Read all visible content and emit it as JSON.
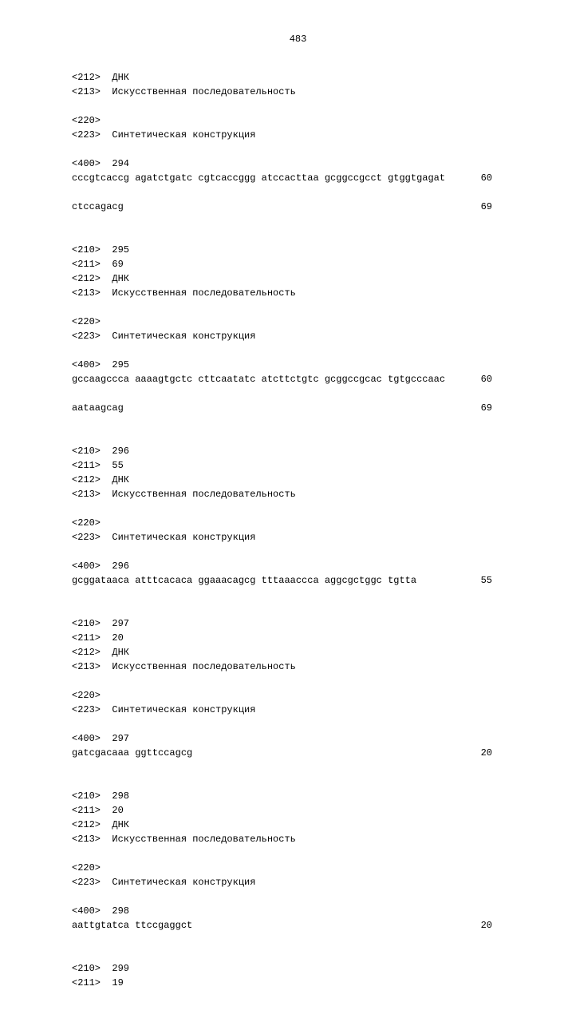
{
  "page_number": "483",
  "records": [
    {
      "tags": [
        {
          "k": "<212>",
          "v": "ДНК"
        },
        {
          "k": "<213>",
          "v": "Искусственная последовательность"
        }
      ],
      "tags2": [
        {
          "k": "<220>",
          "v": ""
        },
        {
          "k": "<223>",
          "v": "Синтетическая конструкция"
        }
      ],
      "seq_tag": {
        "k": "<400>",
        "v": "294"
      },
      "seq_lines": [
        {
          "text": "cccgtcaccg agatctgatc cgtcaccggg atccacttaa gcggccgcct gtggtgagat",
          "n": "60"
        },
        {
          "text": "ctccagacg",
          "n": "69"
        }
      ]
    },
    {
      "tags": [
        {
          "k": "<210>",
          "v": "295"
        },
        {
          "k": "<211>",
          "v": "69"
        },
        {
          "k": "<212>",
          "v": "ДНК"
        },
        {
          "k": "<213>",
          "v": "Искусственная последовательность"
        }
      ],
      "tags2": [
        {
          "k": "<220>",
          "v": ""
        },
        {
          "k": "<223>",
          "v": "Синтетическая конструкция"
        }
      ],
      "seq_tag": {
        "k": "<400>",
        "v": "295"
      },
      "seq_lines": [
        {
          "text": "gccaagccca aaaagtgctc cttcaatatc atcttctgtc gcggccgcac tgtgcccaac",
          "n": "60"
        },
        {
          "text": "aataagcag",
          "n": "69"
        }
      ]
    },
    {
      "tags": [
        {
          "k": "<210>",
          "v": "296"
        },
        {
          "k": "<211>",
          "v": "55"
        },
        {
          "k": "<212>",
          "v": "ДНК"
        },
        {
          "k": "<213>",
          "v": "Искусственная последовательность"
        }
      ],
      "tags2": [
        {
          "k": "<220>",
          "v": ""
        },
        {
          "k": "<223>",
          "v": "Синтетическая конструкция"
        }
      ],
      "seq_tag": {
        "k": "<400>",
        "v": "296"
      },
      "seq_lines": [
        {
          "text": "gcggataaca atttcacaca ggaaacagcg tttaaaccca aggcgctggc tgtta",
          "n": "55"
        }
      ]
    },
    {
      "tags": [
        {
          "k": "<210>",
          "v": "297"
        },
        {
          "k": "<211>",
          "v": "20"
        },
        {
          "k": "<212>",
          "v": "ДНК"
        },
        {
          "k": "<213>",
          "v": "Искусственная последовательность"
        }
      ],
      "tags2": [
        {
          "k": "<220>",
          "v": ""
        },
        {
          "k": "<223>",
          "v": "Синтетическая конструкция"
        }
      ],
      "seq_tag": {
        "k": "<400>",
        "v": "297"
      },
      "seq_lines": [
        {
          "text": "gatcgacaaa ggttccagcg",
          "n": "20"
        }
      ]
    },
    {
      "tags": [
        {
          "k": "<210>",
          "v": "298"
        },
        {
          "k": "<211>",
          "v": "20"
        },
        {
          "k": "<212>",
          "v": "ДНК"
        },
        {
          "k": "<213>",
          "v": "Искусственная последовательность"
        }
      ],
      "tags2": [
        {
          "k": "<220>",
          "v": ""
        },
        {
          "k": "<223>",
          "v": "Синтетическая конструкция"
        }
      ],
      "seq_tag": {
        "k": "<400>",
        "v": "298"
      },
      "seq_lines": [
        {
          "text": "aattgtatca ttccgaggct",
          "n": "20"
        }
      ]
    },
    {
      "tags": [
        {
          "k": "<210>",
          "v": "299"
        },
        {
          "k": "<211>",
          "v": "19"
        }
      ],
      "tags2": [],
      "seq_tag": null,
      "seq_lines": []
    }
  ]
}
